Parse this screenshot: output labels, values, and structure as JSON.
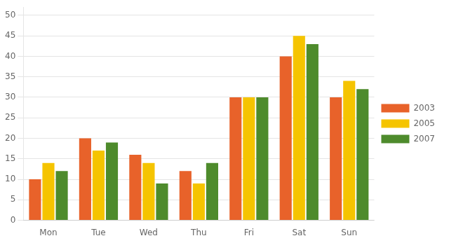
{
  "chart_data": {
    "type": "bar",
    "categories": [
      "Mon",
      "Tue",
      "Wed",
      "Thu",
      "Fri",
      "Sat",
      "Sun"
    ],
    "series": [
      {
        "name": "2003",
        "color": "#E8622A",
        "values": [
          10,
          20,
          16,
          12,
          30,
          40,
          30
        ]
      },
      {
        "name": "2005",
        "color": "#F5C400",
        "values": [
          14,
          17,
          14,
          9,
          30,
          45,
          34
        ]
      },
      {
        "name": "2007",
        "color": "#4E8B2C",
        "values": [
          12,
          19,
          9,
          14,
          30,
          43,
          32
        ]
      }
    ],
    "ylim": [
      0,
      52
    ],
    "yticks": [
      0,
      5,
      10,
      15,
      20,
      25,
      30,
      35,
      40,
      45,
      50
    ],
    "grid": true,
    "legend": "right"
  }
}
